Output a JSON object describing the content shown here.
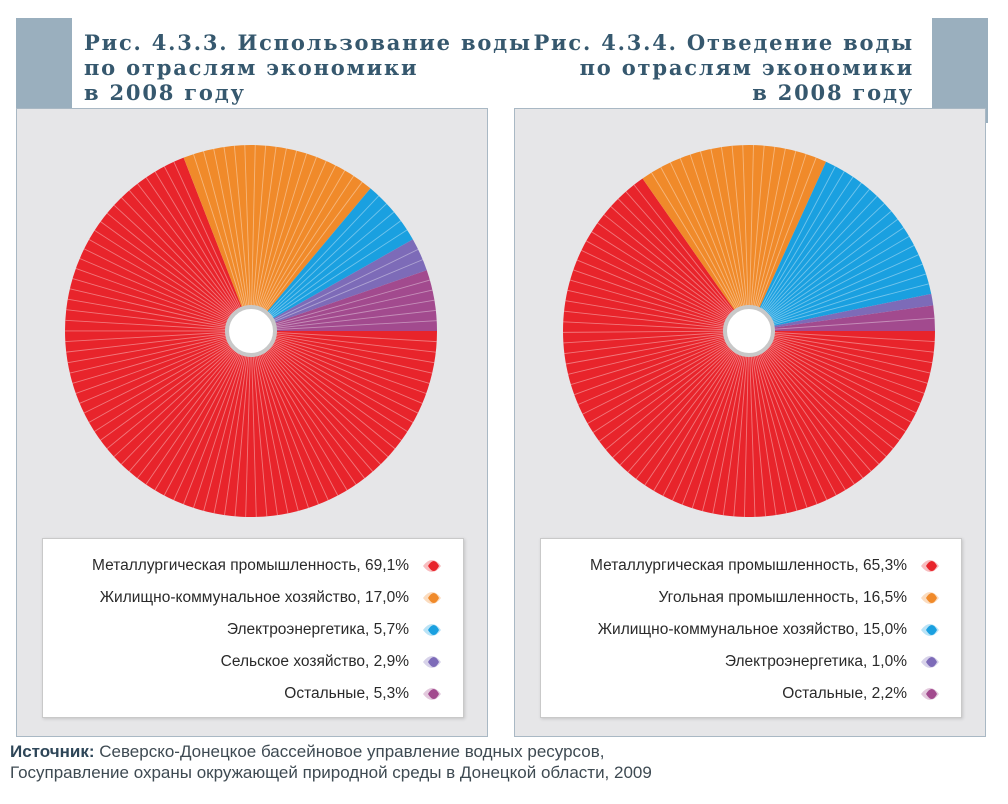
{
  "charts": [
    {
      "title": "Рис. 4.3.3. Использование воды\nпо отраслям экономики\nв 2008 году",
      "legend": [
        "Металлургическая промышленность, 69,1%",
        "Жилищно-коммунальное хозяйство, 17,0%",
        "Электроэнергетика, 5,7%",
        "Сельское хозяйство, 2,9%",
        "Остальные, 5,3%"
      ]
    },
    {
      "title": "Рис. 4.3.4. Отведение воды\nпо отраслям экономики\nв 2008 году",
      "legend": [
        "Металлургическая промышленность, 65,3%",
        "Угольная промышленность, 16,5%",
        "Жилищно-коммунальное хозяйство, 15,0%",
        "Электроэнергетика, 1,0%",
        "Остальные, 2,2%"
      ]
    }
  ],
  "chart_data": [
    {
      "type": "pie",
      "title": "Рис. 4.3.3. Использование воды по отраслям экономики в 2008 году",
      "categories": [
        "Металлургическая промышленность",
        "Жилищно-коммунальное хозяйство",
        "Электроэнергетика",
        "Сельское хозяйство",
        "Остальные"
      ],
      "values": [
        69.1,
        17.0,
        5.7,
        2.9,
        5.3
      ],
      "colors": [
        "#e8242b",
        "#f08a2a",
        "#1aa0e0",
        "#7d6bb8",
        "#a24a8e"
      ],
      "legend_position": "bottom"
    },
    {
      "type": "pie",
      "title": "Рис. 4.3.4. Отведение воды по отраслям экономики в 2008 году",
      "categories": [
        "Металлургическая промышленность",
        "Угольная промышленность",
        "Жилищно-коммунальное хозяйство",
        "Электроэнергетика",
        "Остальные"
      ],
      "values": [
        65.3,
        16.5,
        15.0,
        1.0,
        2.2
      ],
      "colors": [
        "#e8242b",
        "#f08a2a",
        "#1aa0e0",
        "#7d6bb8",
        "#a24a8e"
      ],
      "legend_position": "bottom"
    }
  ],
  "source": {
    "label": "Источник:",
    "text": " Северско-Донецкое бассейновое управление водных ресурсов,\nГосуправление охраны окружающей природной среды в Донецкой области, 2009"
  }
}
